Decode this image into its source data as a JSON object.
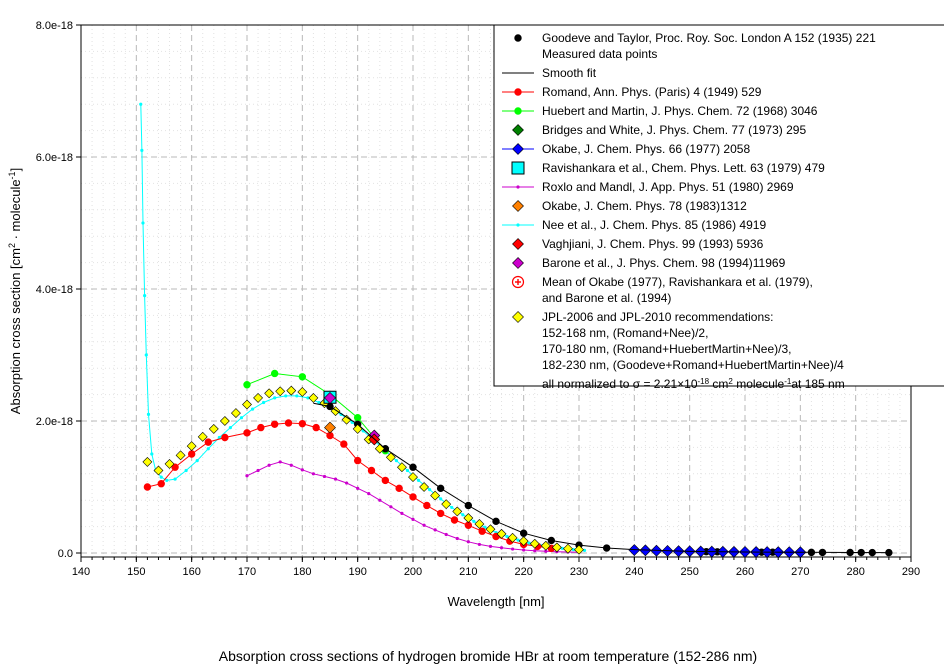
{
  "chart_data": {
    "type": "scatter",
    "title": "Absorption cross sections of hydrogen bromide HBr at room temperature (152-286 nm)",
    "xlabel": "Wavelength [nm]",
    "ylabel": "Absorption cross section [cm2 · molecule-1]",
    "ylabel_parts": [
      "Absorption cross section [cm",
      "2",
      " · molecule",
      "-1",
      "]"
    ],
    "xlim": [
      140,
      290
    ],
    "ylim": [
      0,
      8e-18
    ],
    "x_ticks": [
      140,
      150,
      160,
      170,
      180,
      190,
      200,
      210,
      220,
      230,
      240,
      250,
      260,
      270,
      280,
      290
    ],
    "x_tick_labels": [
      "140",
      "150",
      "160",
      "170",
      "180",
      "190",
      "200",
      "210",
      "220",
      "230",
      "240",
      "250",
      "260",
      "270",
      "280",
      "290"
    ],
    "y_ticks": [
      0,
      2e-18,
      4e-18,
      6e-18,
      8e-18
    ],
    "y_tick_labels": [
      "0.0",
      "2.0e-18",
      "4.0e-18",
      "6.0e-18",
      "8.0e-18"
    ],
    "grid": true,
    "legend_position": "top-right",
    "series": [
      {
        "name": "Goodeve and Taylor, Proc. Roy. Soc. London A 152 (1935) 221 Measured data points",
        "color": "#000000",
        "marker": "circle",
        "line": false,
        "x": [
          185,
          190,
          195,
          200,
          205,
          210,
          215,
          220,
          225,
          230,
          235,
          240,
          242,
          244,
          246,
          248,
          250,
          253,
          255,
          258,
          260,
          263,
          265,
          268,
          270,
          272,
          274,
          279,
          281,
          283,
          286
        ],
        "y": [
          2.22e-18,
          1.95e-18,
          1.58e-18,
          1.3e-18,
          9.8e-19,
          7.2e-19,
          4.8e-19,
          3e-19,
          1.9e-19,
          1.2e-19,
          7.5e-20,
          5.2e-20,
          4.4e-20,
          3.8e-20,
          3.2e-20,
          2.8e-20,
          2.4e-20,
          2e-20,
          1.8e-20,
          1.6e-20,
          1.5e-20,
          1.3e-20,
          1.2e-20,
          1.1e-20,
          1e-20,
          9.5e-21,
          9e-21,
          7.5e-21,
          7e-21,
          6.5e-21,
          6e-21
        ]
      },
      {
        "name": "Smooth fit",
        "color": "#000000",
        "marker": "none",
        "line": true,
        "x": [
          182,
          185,
          190,
          195,
          200,
          205,
          210,
          215,
          220,
          225,
          230,
          235,
          240,
          250,
          260,
          270,
          280,
          286
        ],
        "y": [
          2.27e-18,
          2.22e-18,
          1.95e-18,
          1.58e-18,
          1.3e-18,
          9.8e-19,
          7.2e-19,
          4.8e-19,
          3e-19,
          1.9e-19,
          1.2e-19,
          7.5e-20,
          5.2e-20,
          2.4e-20,
          1.5e-20,
          1e-20,
          7.5e-21,
          6e-21
        ]
      },
      {
        "name": "Romand, Ann. Phys. (Paris) 4 (1949) 529",
        "color": "#ff0000",
        "marker": "circle",
        "line": true,
        "x": [
          152,
          154.5,
          157,
          160,
          163,
          166,
          170,
          172.5,
          175,
          177.5,
          180,
          182.5,
          185,
          187.5,
          190,
          192.5,
          195,
          197.5,
          200,
          202.5,
          205,
          207.5,
          210,
          212.5,
          215,
          217.5,
          220,
          222.5,
          225
        ],
        "y": [
          1e-18,
          1.05e-18,
          1.3e-18,
          1.5e-18,
          1.68e-18,
          1.75e-18,
          1.82e-18,
          1.9e-18,
          1.95e-18,
          1.97e-18,
          1.96e-18,
          1.9e-18,
          1.78e-18,
          1.65e-18,
          1.4e-18,
          1.25e-18,
          1.1e-18,
          9.8e-19,
          8.5e-19,
          7.2e-19,
          6e-19,
          5e-19,
          4.2e-19,
          3.3e-19,
          2.5e-19,
          1.8e-19,
          1.3e-19,
          1e-19,
          7e-20
        ]
      },
      {
        "name": "Huebert and Martin, J. Phys. Chem. 72 (1968) 3046",
        "color": "#00ff00",
        "marker": "circle",
        "line": true,
        "x": [
          170,
          175,
          180,
          185,
          190,
          195
        ],
        "y": [
          2.55e-18,
          2.72e-18,
          2.67e-18,
          2.4e-18,
          2.05e-18,
          1.55e-18
        ]
      },
      {
        "name": "Bridges and White, J. Phys. Chem. 77 (1973) 295",
        "color": "#008000",
        "marker": "diamond",
        "line": false,
        "x": [
          185
        ],
        "y": [
          2.37e-18
        ]
      },
      {
        "name": "Okabe, J. Chem. Phys. 66 (1977) 2058",
        "color": "#0000ff",
        "marker": "diamond",
        "line": false,
        "x": [
          240,
          242,
          244,
          246,
          248,
          250,
          252,
          254,
          256,
          258,
          260,
          262,
          264,
          266,
          268,
          270
        ],
        "y": [
          4.5e-20,
          4e-20,
          3.5e-20,
          3.1e-20,
          2.8e-20,
          2.5e-20,
          2.2e-20,
          2e-20,
          1.8e-20,
          1.7e-20,
          1.6e-20,
          1.5e-20,
          1.4e-20,
          1.3e-20,
          1.2e-20,
          1.1e-20
        ]
      },
      {
        "name": "Ravishankara et al., Chem. Phys. Lett. 63 (1979) 479",
        "color": "#00ffff",
        "marker": "square",
        "line": false,
        "x": [
          185
        ],
        "y": [
          2.36e-18
        ]
      },
      {
        "name": "Roxlo  and Mandl, J. App. Phys. 51 (1980) 2969",
        "color": "#cc00cc",
        "marker": "small",
        "line": true,
        "x": [
          170,
          172,
          174,
          176,
          178,
          180,
          182,
          184,
          186,
          188,
          190,
          192,
          194,
          196,
          198,
          200,
          202,
          204,
          206,
          208,
          210,
          212,
          214,
          216,
          218,
          220,
          222,
          224,
          226,
          228,
          230
        ],
        "y": [
          1.17e-18,
          1.25e-18,
          1.33e-18,
          1.38e-18,
          1.33e-18,
          1.26e-18,
          1.2e-18,
          1.16e-18,
          1.12e-18,
          1.06e-18,
          9.8e-19,
          9e-19,
          8e-19,
          7e-19,
          6e-19,
          5.1e-19,
          4.2e-19,
          3.5e-19,
          2.8e-19,
          2.2e-19,
          1.7e-19,
          1.3e-19,
          1e-19,
          8e-20,
          6e-20,
          4.5e-20,
          3.5e-20,
          2.6e-20,
          2e-20,
          1.5e-20,
          1e-20
        ]
      },
      {
        "name": "Okabe, J. Chem. Phys. 78 (1983)1312",
        "color": "#ff8000",
        "marker": "diamond",
        "line": false,
        "x": [
          185
        ],
        "y": [
          1.9e-18
        ]
      },
      {
        "name": "Nee et al., J. Chem. Phys. 85 (1986) 4919",
        "color": "#00ffff",
        "marker": "small",
        "line": true,
        "x": [
          150.8,
          151,
          151.2,
          151.5,
          151.8,
          152.2,
          152.8,
          153.5,
          154.5,
          155.5,
          157,
          159,
          161,
          163,
          165,
          167,
          169,
          171,
          173,
          175,
          177,
          179,
          181,
          183,
          185,
          187,
          189,
          191,
          193,
          195,
          197,
          199,
          201,
          203,
          205,
          207,
          209,
          211,
          213,
          215,
          217,
          219,
          221,
          223,
          225,
          227,
          229,
          231
        ],
        "y": [
          6.8e-18,
          6.1e-18,
          5e-18,
          3.9e-18,
          3e-18,
          2.1e-18,
          1.5e-18,
          1.25e-18,
          1.15e-18,
          1.1e-18,
          1.12e-18,
          1.25e-18,
          1.4e-18,
          1.58e-18,
          1.75e-18,
          1.9e-18,
          2.05e-18,
          2.18e-18,
          2.28e-18,
          2.35e-18,
          2.38e-18,
          2.38e-18,
          2.35e-18,
          2.28e-18,
          2.2e-18,
          2.1e-18,
          1.98e-18,
          1.85e-18,
          1.7e-18,
          1.55e-18,
          1.4e-18,
          1.25e-18,
          1.1e-18,
          9.6e-19,
          8.2e-19,
          6.9e-19,
          5.8e-19,
          4.8e-19,
          3.9e-19,
          3.1e-19,
          2.5e-19,
          1.95e-19,
          1.5e-19,
          1.15e-19,
          9e-20,
          7e-20,
          5.2e-20,
          4e-20
        ]
      },
      {
        "name": "Vaghjiani, J. Chem. Phys. 99 (1993) 5936",
        "color": "#ff0000",
        "marker": "diamond",
        "line": false,
        "x": [
          193
        ],
        "y": [
          1.72e-18
        ]
      },
      {
        "name": "Barone et al., J. Phys. Chem. 98 (1994)11969",
        "color": "#cc00cc",
        "marker": "diamond",
        "line": false,
        "x": [
          185,
          193
        ],
        "y": [
          2.35e-18,
          1.78e-18
        ]
      },
      {
        "name": "Mean of Okabe (1977), Ravishankara et al. (1979), and Barone et al. (1994)",
        "color": "#ff0000",
        "marker": "crosscircle",
        "line": false,
        "x": [],
        "y": []
      },
      {
        "name": "JPL-2006 and JPL-2010 recommendations: 152-168 nm, (Romand+Nee)/2, 170-180 nm, (Romand+HuebertMartin+Nee)/3, 182-230 nm, (Goodeve+Romand+HuebertMartin+Nee)/4 all normalized to σ = 2.21×10-18 cm2 molecule-1 at 185 nm",
        "color": "#ffff00",
        "marker": "diamond",
        "line": false,
        "x": [
          152,
          154,
          156,
          158,
          160,
          162,
          164,
          166,
          168,
          170,
          172,
          174,
          176,
          178,
          180,
          182,
          184,
          186,
          188,
          190,
          192,
          194,
          196,
          198,
          200,
          202,
          204,
          206,
          208,
          210,
          212,
          214,
          216,
          218,
          220,
          222,
          224,
          226,
          228,
          230
        ],
        "y": [
          1.38e-18,
          1.25e-18,
          1.35e-18,
          1.48e-18,
          1.62e-18,
          1.76e-18,
          1.88e-18,
          2e-18,
          2.12e-18,
          2.25e-18,
          2.35e-18,
          2.42e-18,
          2.45e-18,
          2.46e-18,
          2.44e-18,
          2.35e-18,
          2.27e-18,
          2.15e-18,
          2.02e-18,
          1.88e-18,
          1.72e-18,
          1.58e-18,
          1.45e-18,
          1.3e-18,
          1.15e-18,
          1e-18,
          8.7e-19,
          7.4e-19,
          6.3e-19,
          5.3e-19,
          4.4e-19,
          3.6e-19,
          2.9e-19,
          2.3e-19,
          1.8e-19,
          1.4e-19,
          1.1e-19,
          8.5e-20,
          6.5e-20,
          5e-20
        ]
      }
    ],
    "legend": [
      {
        "lines": [
          "Goodeve and Taylor, Proc. Roy. Soc. London A 152 (1935) 221",
          "Measured data points"
        ],
        "marker": "circle",
        "color": "#000000",
        "line": false
      },
      {
        "lines": [
          "Smooth fit"
        ],
        "marker": "none",
        "color": "#000000",
        "line": true
      },
      {
        "lines": [
          "Romand, Ann. Phys. (Paris) 4 (1949) 529"
        ],
        "marker": "circle",
        "color": "#ff0000",
        "line": true
      },
      {
        "lines": [
          "Huebert and Martin, J. Phys. Chem. 72 (1968) 3046"
        ],
        "marker": "circle",
        "color": "#00ff00",
        "line": true
      },
      {
        "lines": [
          "Bridges and White, J. Phys. Chem. 77 (1973) 295"
        ],
        "marker": "diamond",
        "color": "#008000",
        "line": false
      },
      {
        "lines": [
          "Okabe, J. Chem. Phys. 66 (1977) 2058"
        ],
        "marker": "diamond",
        "color": "#0000ff",
        "line": true
      },
      {
        "lines": [
          "Ravishankara et al., Chem. Phys. Lett. 63 (1979) 479"
        ],
        "marker": "square",
        "color": "#00ffff",
        "line": false
      },
      {
        "lines": [
          "Roxlo  and Mandl, J. App. Phys. 51 (1980) 2969"
        ],
        "marker": "small",
        "color": "#cc00cc",
        "line": true
      },
      {
        "lines": [
          "Okabe, J. Chem. Phys. 78 (1983)1312"
        ],
        "marker": "diamond",
        "color": "#ff8000",
        "line": false
      },
      {
        "lines": [
          "Nee et al., J. Chem. Phys. 85 (1986) 4919"
        ],
        "marker": "small",
        "color": "#00ffff",
        "line": true
      },
      {
        "lines": [
          "Vaghjiani, J. Chem. Phys. 99 (1993) 5936"
        ],
        "marker": "diamond",
        "color": "#ff0000",
        "line": false
      },
      {
        "lines": [
          "Barone et al., J. Phys. Chem. 98 (1994)11969"
        ],
        "marker": "diamond",
        "color": "#cc00cc",
        "line": false
      },
      {
        "lines": [
          "Mean of Okabe (1977), Ravishankara et al. (1979),",
          "and Barone et al. (1994)"
        ],
        "marker": "crosscircle",
        "color": "#ff0000",
        "line": false
      },
      {
        "lines": [
          "JPL-2006 and JPL-2010 recommendations:",
          "152-168 nm, (Romand+Nee)/2,",
          "170-180 nm, (Romand+HuebertMartin+Nee)/3,",
          "182-230 nm, (Goodeve+Romand+HuebertMartin+Nee)/4"
        ],
        "marker": "diamond",
        "color": "#ffff00",
        "line": false
      },
      {
        "lines": [
          "all normalized to σ = 2.21×10-18 cm2 molecule-1 at 185 nm"
        ],
        "marker": "none",
        "color": "#000000",
        "line": false
      }
    ],
    "legend_last_parts": [
      "all normalized to σ = 2.21×10",
      "-18",
      " cm",
      "2",
      " molecule",
      "-1",
      "at 185 nm"
    ]
  }
}
